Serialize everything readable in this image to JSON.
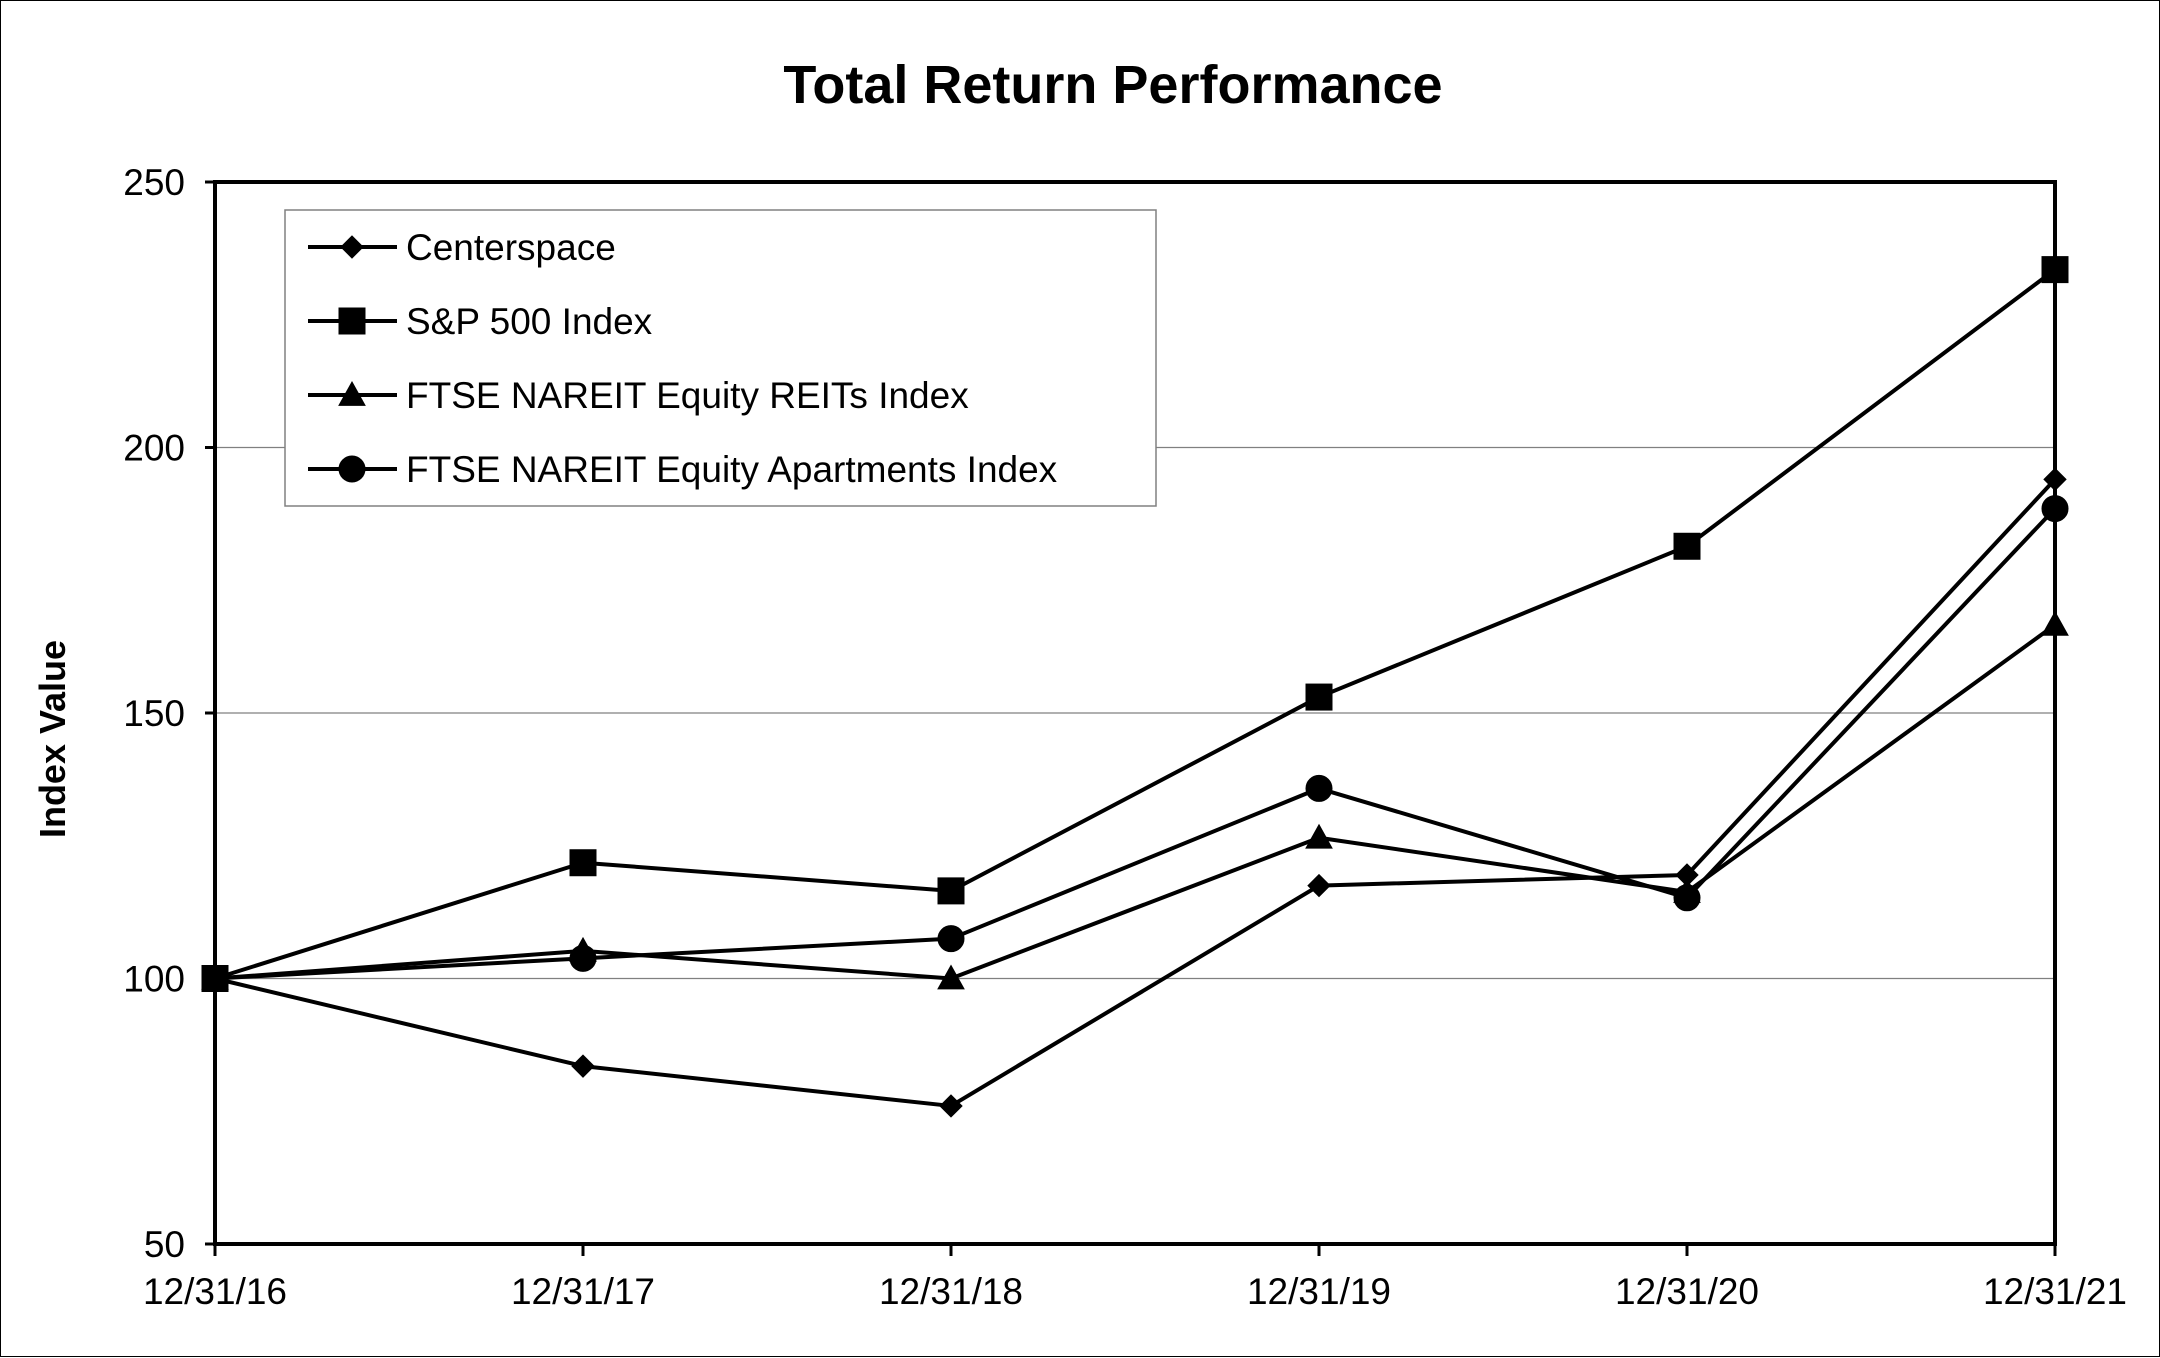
{
  "chart_data": {
    "type": "line",
    "title": "Total Return Performance",
    "xlabel": "",
    "ylabel": "Index Value",
    "categories": [
      "12/31/16",
      "12/31/17",
      "12/31/18",
      "12/31/19",
      "12/31/20",
      "12/31/21"
    ],
    "ylim": [
      50,
      250
    ],
    "yticks": [
      50,
      100,
      150,
      200,
      250
    ],
    "grid": "horizontal",
    "legend_position": "top-left",
    "series": [
      {
        "name": "Centerspace",
        "marker": "diamond",
        "values": [
          100,
          83.5,
          76.0,
          117.5,
          119.5,
          194.0
        ]
      },
      {
        "name": "S&P 500 Index",
        "marker": "square",
        "values": [
          100,
          121.8,
          116.5,
          153.0,
          181.4,
          233.5
        ]
      },
      {
        "name": "FTSE NAREIT Equity REITs Index",
        "marker": "triangle",
        "values": [
          100,
          105.2,
          100.0,
          126.5,
          116.3,
          166.6
        ]
      },
      {
        "name": "FTSE NAREIT Equity Apartments Index",
        "marker": "circle",
        "values": [
          100,
          103.8,
          107.5,
          135.8,
          115.2,
          188.5
        ]
      }
    ],
    "line_color": "#000000",
    "grid_color": "#808080"
  }
}
